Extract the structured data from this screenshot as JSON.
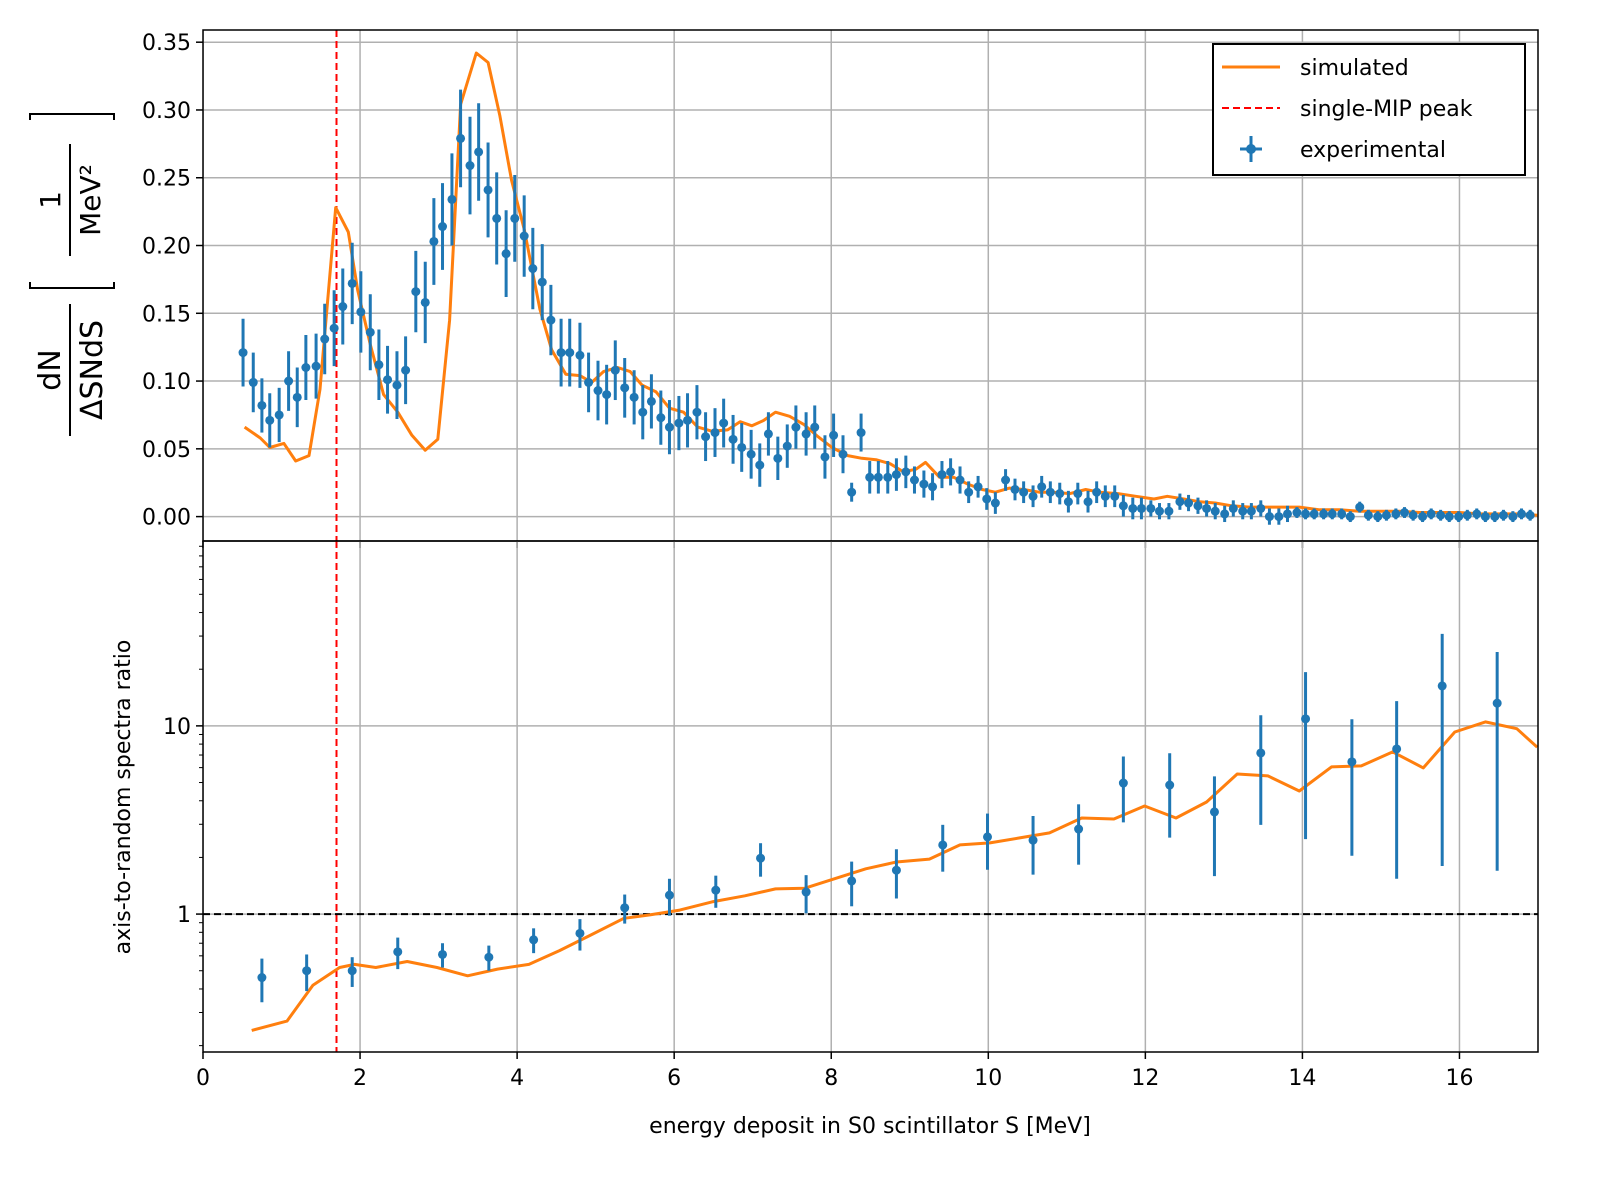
{
  "chart_data": [
    {
      "type": "line",
      "ylabel": {
        "numerator": "dN",
        "denominator": "ΔSNdS",
        "unit_numerator": "1",
        "unit_denominator": "MeV²"
      },
      "xlim": [
        0,
        17
      ],
      "xticks": [
        0,
        2,
        4,
        6,
        8,
        10,
        12,
        14,
        16
      ],
      "xtick_labels": false,
      "ylim": [
        -0.018,
        0.359
      ],
      "yticks": [
        {
          "value": 0,
          "label": "0.00"
        },
        {
          "value": 0.05,
          "label": "0.05"
        },
        {
          "value": 0.1,
          "label": "0.10"
        },
        {
          "value": 0.15,
          "label": "0.15"
        },
        {
          "value": 0.2,
          "label": "0.20"
        },
        {
          "value": 0.25,
          "label": "0.25"
        },
        {
          "value": 0.3,
          "label": "0.30"
        },
        {
          "value": 0.35,
          "label": "0.35"
        }
      ],
      "grid": true,
      "legend": "upper right",
      "series": [
        {
          "name": "simulated",
          "color": "#ff7f0e",
          "x": [
            0.53,
            0.73,
            0.85,
            1.03,
            1.18,
            1.35,
            1.49,
            1.69,
            1.85,
            1.97,
            2.13,
            2.3,
            2.48,
            2.66,
            2.83,
            2.99,
            3.14,
            3.28,
            3.48,
            3.63,
            3.78,
            3.93,
            4.09,
            4.29,
            4.44,
            4.62,
            4.8,
            4.95,
            5.1,
            5.28,
            5.44,
            5.59,
            5.77,
            5.94,
            6.12,
            6.3,
            6.48,
            6.68,
            6.84,
            6.99,
            7.14,
            7.29,
            7.47,
            7.65,
            7.83,
            8.01,
            8.21,
            8.39,
            8.57,
            8.75,
            8.92,
            9.08,
            9.2,
            9.38,
            9.56,
            9.74,
            9.92,
            10.09,
            10.27,
            10.45,
            10.65,
            10.83,
            11.04,
            11.24,
            11.42,
            11.65,
            11.88,
            12.11,
            12.28,
            12.49,
            12.69,
            12.89,
            13.1,
            13.33,
            13.56,
            13.76,
            13.96,
            14.22,
            14.47,
            14.73,
            14.98,
            15.24,
            15.49,
            15.75,
            16.0,
            16.26,
            16.51,
            16.76,
            16.99
          ],
          "values": [
            0.066,
            0.058,
            0.051,
            0.054,
            0.041,
            0.045,
            0.094,
            0.228,
            0.21,
            0.167,
            0.127,
            0.09,
            0.077,
            0.06,
            0.049,
            0.057,
            0.145,
            0.304,
            0.342,
            0.335,
            0.296,
            0.248,
            0.212,
            0.153,
            0.123,
            0.105,
            0.104,
            0.099,
            0.107,
            0.11,
            0.107,
            0.097,
            0.092,
            0.08,
            0.077,
            0.066,
            0.063,
            0.064,
            0.07,
            0.067,
            0.071,
            0.077,
            0.074,
            0.068,
            0.059,
            0.051,
            0.045,
            0.043,
            0.042,
            0.039,
            0.033,
            0.035,
            0.04,
            0.029,
            0.029,
            0.024,
            0.02,
            0.018,
            0.021,
            0.02,
            0.018,
            0.018,
            0.017,
            0.02,
            0.018,
            0.017,
            0.015,
            0.013,
            0.015,
            0.013,
            0.011,
            0.01,
            0.008,
            0.007,
            0.007,
            0.007,
            0.007,
            0.005,
            0.005,
            0.004,
            0.004,
            0.004,
            0.003,
            0.003,
            0.003,
            0.002,
            0.002,
            0.002,
            0.001
          ]
        },
        {
          "name": "experimental",
          "color": "#1f77b4",
          "x": [
            0.51,
            0.64,
            0.75,
            0.85,
            0.97,
            1.09,
            1.2,
            1.31,
            1.44,
            1.55,
            1.67,
            1.78,
            1.9,
            2.01,
            2.13,
            2.24,
            2.35,
            2.47,
            2.58,
            2.71,
            2.83,
            2.94,
            3.05,
            3.17,
            3.28,
            3.4,
            3.51,
            3.63,
            3.74,
            3.86,
            3.97,
            4.09,
            4.2,
            4.32,
            4.43,
            4.56,
            4.67,
            4.8,
            4.91,
            5.03,
            5.14,
            5.25,
            5.37,
            5.49,
            5.6,
            5.71,
            5.83,
            5.94,
            6.06,
            6.17,
            6.29,
            6.4,
            6.52,
            6.63,
            6.75,
            6.86,
            6.98,
            7.09,
            7.2,
            7.32,
            7.44,
            7.55,
            7.68,
            7.79,
            7.92,
            8.03,
            8.15,
            8.26,
            8.38,
            8.49,
            8.6,
            8.72,
            8.83,
            8.95,
            9.06,
            9.18,
            9.29,
            9.41,
            9.52,
            9.64,
            9.75,
            9.87,
            9.98,
            10.09,
            10.22,
            10.34,
            10.45,
            10.57,
            10.68,
            10.79,
            10.91,
            11.02,
            11.14,
            11.27,
            11.38,
            11.49,
            11.61,
            11.72,
            11.84,
            11.95,
            12.07,
            12.18,
            12.3,
            12.44,
            12.55,
            12.67,
            12.78,
            12.89,
            13.01,
            13.12,
            13.24,
            13.35,
            13.47,
            13.58,
            13.7,
            13.81,
            13.93,
            14.04,
            14.15,
            14.27,
            14.38,
            14.5,
            14.61,
            14.73,
            14.84,
            14.96,
            15.07,
            15.19,
            15.3,
            15.41,
            15.53,
            15.64,
            15.76,
            15.87,
            15.99,
            16.1,
            16.22,
            16.33,
            16.45,
            16.56,
            16.68,
            16.79,
            16.9
          ],
          "values": [
            0.121,
            0.099,
            0.082,
            0.071,
            0.075,
            0.1,
            0.088,
            0.11,
            0.111,
            0.131,
            0.139,
            0.155,
            0.172,
            0.151,
            0.136,
            0.112,
            0.101,
            0.097,
            0.108,
            0.166,
            0.158,
            0.203,
            0.214,
            0.234,
            0.279,
            0.259,
            0.269,
            0.241,
            0.22,
            0.194,
            0.22,
            0.207,
            0.183,
            0.173,
            0.145,
            0.121,
            0.121,
            0.119,
            0.099,
            0.093,
            0.09,
            0.108,
            0.095,
            0.088,
            0.077,
            0.085,
            0.073,
            0.066,
            0.069,
            0.071,
            0.077,
            0.059,
            0.062,
            0.069,
            0.057,
            0.051,
            0.046,
            0.038,
            0.061,
            0.043,
            0.052,
            0.066,
            0.061,
            0.066,
            0.044,
            0.06,
            0.046,
            0.018,
            0.062,
            0.029,
            0.029,
            0.029,
            0.031,
            0.033,
            0.027,
            0.024,
            0.022,
            0.031,
            0.033,
            0.027,
            0.018,
            0.022,
            0.013,
            0.01,
            0.027,
            0.02,
            0.018,
            0.015,
            0.022,
            0.018,
            0.017,
            0.011,
            0.017,
            0.011,
            0.018,
            0.015,
            0.015,
            0.008,
            0.006,
            0.006,
            0.006,
            0.004,
            0.004,
            0.011,
            0.01,
            0.008,
            0.006,
            0.004,
            0.002,
            0.006,
            0.004,
            0.004,
            0.006,
            0,
            0,
            0.002,
            0.003,
            0.002,
            0.002,
            0.002,
            0.002,
            0.002,
            0,
            0.007,
            0.001,
            0,
            0.001,
            0.002,
            0.003,
            0.001,
            0,
            0.002,
            0.001,
            0,
            0,
            0.001,
            0.002,
            0,
            0,
            0.001,
            0,
            0.002,
            0.001
          ],
          "errors": [
            0.025,
            0.022,
            0.02,
            0.02,
            0.02,
            0.022,
            0.022,
            0.024,
            0.024,
            0.026,
            0.028,
            0.028,
            0.03,
            0.03,
            0.028,
            0.026,
            0.025,
            0.025,
            0.025,
            0.03,
            0.03,
            0.032,
            0.032,
            0.034,
            0.036,
            0.036,
            0.036,
            0.035,
            0.034,
            0.032,
            0.032,
            0.03,
            0.03,
            0.028,
            0.026,
            0.025,
            0.025,
            0.024,
            0.022,
            0.022,
            0.022,
            0.022,
            0.022,
            0.02,
            0.02,
            0.02,
            0.02,
            0.02,
            0.02,
            0.02,
            0.02,
            0.018,
            0.018,
            0.018,
            0.018,
            0.018,
            0.018,
            0.016,
            0.016,
            0.016,
            0.016,
            0.016,
            0.016,
            0.016,
            0.016,
            0.016,
            0.014,
            0.007,
            0.014,
            0.012,
            0.012,
            0.012,
            0.012,
            0.012,
            0.01,
            0.01,
            0.01,
            0.01,
            0.01,
            0.01,
            0.008,
            0.008,
            0.008,
            0.008,
            0.008,
            0.008,
            0.008,
            0.008,
            0.008,
            0.008,
            0.008,
            0.008,
            0.008,
            0.008,
            0.008,
            0.008,
            0.008,
            0.008,
            0.008,
            0.008,
            0.006,
            0.006,
            0.006,
            0.006,
            0.006,
            0.006,
            0.006,
            0.006,
            0.006,
            0.006,
            0.006,
            0.006,
            0.006,
            0.006,
            0.006,
            0.006,
            0.004,
            0.004,
            0.004,
            0.004,
            0.004,
            0.004,
            0.004,
            0.004,
            0.004,
            0.004,
            0.004,
            0.004,
            0.004,
            0.004,
            0.004,
            0.004,
            0.004,
            0.004,
            0.004,
            0.004,
            0.004,
            0.004,
            0.004,
            0.004,
            0.004,
            0.004,
            0.004
          ]
        }
      ],
      "reference_lines": [
        {
          "name": "single-MIP peak",
          "x": 1.7,
          "color": "#ff0000",
          "style": "dashed"
        }
      ]
    },
    {
      "type": "line",
      "ylabel": "axis-to-random spectra ratio",
      "xlabel": "energy deposit in S0 scintillator S [MeV]",
      "xlim": [
        0,
        17
      ],
      "xticks": [
        0,
        2,
        4,
        6,
        8,
        10,
        12,
        14,
        16
      ],
      "xtick_labels": true,
      "ylim": [
        0.185,
        96
      ],
      "log": true,
      "yticks": [
        1,
        10
      ],
      "yminorticks": [
        0.2,
        0.3,
        0.4,
        0.5,
        0.6,
        0.7,
        0.8,
        0.9,
        2,
        3,
        4,
        5,
        6,
        7,
        8,
        9,
        20,
        30,
        40,
        50,
        60,
        70,
        80,
        90
      ],
      "grid": true,
      "series": [
        {
          "name": "simulated",
          "color": "#ff7f0e",
          "x": [
            0.62,
            1.07,
            1.4,
            1.74,
            1.93,
            2.2,
            2.6,
            2.98,
            3.37,
            3.75,
            4.15,
            4.54,
            4.93,
            5.36,
            5.69,
            6.07,
            6.48,
            6.9,
            7.29,
            7.66,
            8.06,
            8.44,
            8.83,
            9.25,
            9.64,
            10.02,
            10.4,
            10.78,
            11.19,
            11.6,
            11.99,
            12.39,
            12.78,
            13.17,
            13.56,
            13.96,
            14.37,
            14.75,
            15.15,
            15.54,
            15.94,
            16.33,
            16.73,
            16.99
          ],
          "values": [
            0.241,
            0.27,
            0.419,
            0.52,
            0.54,
            0.52,
            0.56,
            0.52,
            0.47,
            0.51,
            0.54,
            0.64,
            0.77,
            0.95,
            0.99,
            1.05,
            1.16,
            1.25,
            1.36,
            1.37,
            1.55,
            1.74,
            1.89,
            1.96,
            2.33,
            2.39,
            2.54,
            2.7,
            3.24,
            3.2,
            3.75,
            3.24,
            3.94,
            5.55,
            5.42,
            4.51,
            6.05,
            6.13,
            7.27,
            5.98,
            9.28,
            10.5,
            9.66,
            7.7
          ]
        },
        {
          "name": "experimental",
          "color": "#1f77b4",
          "x": [
            0.75,
            1.32,
            1.9,
            2.48,
            3.05,
            3.64,
            4.21,
            4.8,
            5.37,
            5.94,
            6.53,
            7.1,
            7.68,
            8.26,
            8.83,
            9.42,
            9.99,
            10.57,
            11.15,
            11.72,
            12.31,
            12.88,
            13.47,
            14.04,
            14.63,
            15.2,
            15.78,
            16.48
          ],
          "values": [
            0.46,
            0.5,
            0.5,
            0.63,
            0.61,
            0.59,
            0.73,
            0.79,
            1.08,
            1.26,
            1.34,
            1.98,
            1.31,
            1.5,
            1.71,
            2.33,
            2.57,
            2.47,
            2.83,
            4.97,
            4.85,
            3.49,
            7.18,
            10.9,
            6.44,
            7.54,
            16.3,
            13.2
          ],
          "errors": [
            0.12,
            0.11,
            0.09,
            0.12,
            0.09,
            0.09,
            0.11,
            0.15,
            0.19,
            0.28,
            0.26,
            0.4,
            0.3,
            0.4,
            0.5,
            0.65,
            0.85,
            0.85,
            1.0,
            1.9,
            2.3,
            1.9,
            4.2,
            8.4,
            4.4,
            6.0,
            14.5,
            11.5
          ]
        }
      ],
      "reference_lines": [
        {
          "x": 1.7,
          "color": "#ff0000",
          "style": "dashed"
        },
        {
          "y": 1,
          "color": "#000000",
          "style": "dashed"
        }
      ]
    }
  ]
}
